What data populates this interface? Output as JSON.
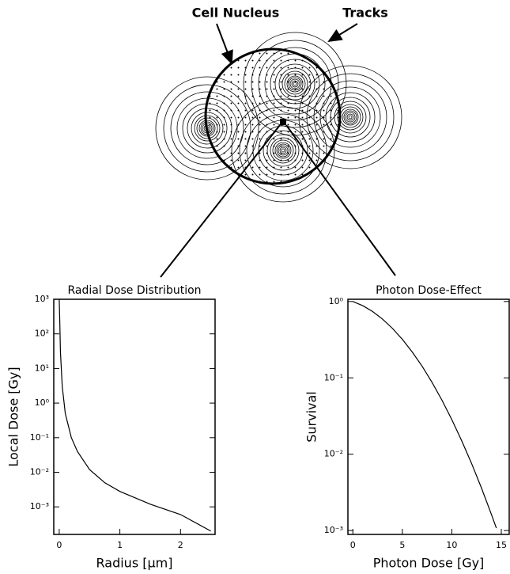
{
  "diagram": {
    "labels": [
      "Cell Nucleus",
      "Tracks"
    ]
  },
  "chart_data": [
    {
      "type": "line",
      "title": "Radial Dose Distribution",
      "xlabel": "Radius [μm]",
      "ylabel": "Local Dose [Gy]",
      "log_y": true,
      "color": "#000000",
      "x": [
        0,
        0.01,
        0.02,
        0.05,
        0.1,
        0.2,
        0.3,
        0.5,
        0.75,
        1,
        1.5,
        2,
        2.5
      ],
      "values": [
        1000,
        200,
        30,
        3,
        0.5,
        0.1,
        0.04,
        0.012,
        0.005,
        0.0028,
        0.0012,
        0.0006,
        0.0002
      ],
      "xlim": [
        -0.09,
        2.57
      ],
      "ylim": [
        0.00016,
        1000
      ],
      "xticks": [
        0,
        1,
        2
      ],
      "yticks": [
        {
          "value": 1000,
          "label": "10³"
        },
        {
          "value": 100,
          "label": "10²"
        },
        {
          "value": 10,
          "label": "10¹"
        },
        {
          "value": 1,
          "label": "10⁰"
        },
        {
          "value": 0.1,
          "label": "10⁻¹"
        },
        {
          "value": 0.01,
          "label": "10⁻²"
        },
        {
          "value": 0.001,
          "label": "10⁻³"
        }
      ]
    },
    {
      "type": "line",
      "title": "Photon Dose-Effect",
      "xlabel": "Photon Dose [Gy]",
      "ylabel": "Survival",
      "log_y": true,
      "color": "#000000",
      "x": [
        0,
        1,
        2,
        3,
        4,
        5,
        6,
        7,
        8,
        9,
        10,
        11,
        12,
        13,
        14,
        14.5
      ],
      "values": [
        1,
        0.882,
        0.739,
        0.588,
        0.445,
        0.32,
        0.218,
        0.142,
        0.0873,
        0.0511,
        0.0284,
        0.015,
        0.00755,
        0.0036,
        0.00163,
        0.00108
      ],
      "xlim": [
        -0.5,
        15.8
      ],
      "ylim": [
        0.00089,
        1.07
      ],
      "xticks": [
        0,
        5,
        10,
        15
      ],
      "yticks": [
        {
          "value": 1,
          "label": "10⁰"
        },
        {
          "value": 0.1,
          "label": "10⁻¹"
        },
        {
          "value": 0.01,
          "label": "10⁻²"
        },
        {
          "value": 0.001,
          "label": "10⁻³"
        }
      ]
    }
  ]
}
